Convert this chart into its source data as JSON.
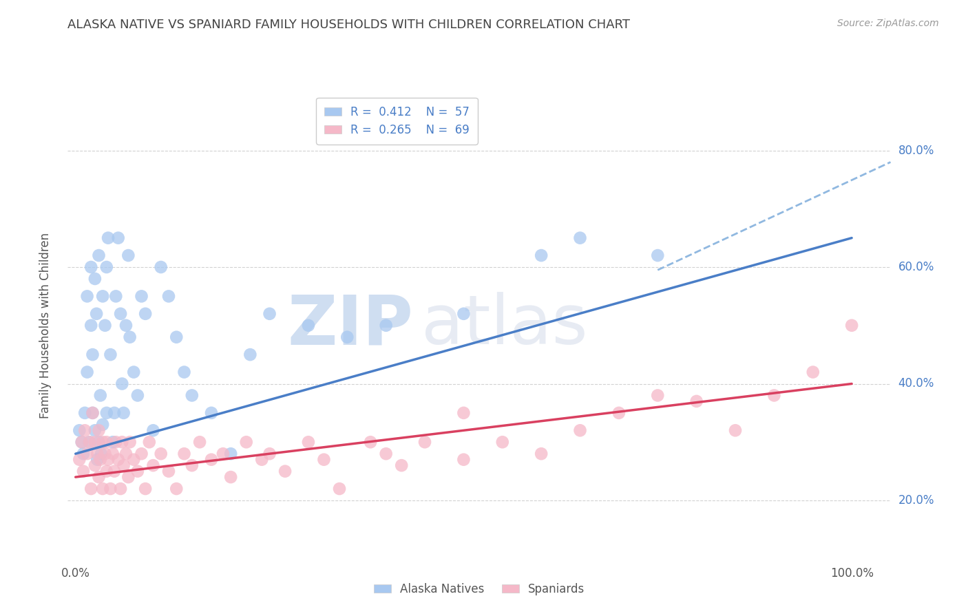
{
  "title": "ALASKA NATIVE VS SPANIARD FAMILY HOUSEHOLDS WITH CHILDREN CORRELATION CHART",
  "source": "Source: ZipAtlas.com",
  "ylabel": "Family Households with Children",
  "legend_r1": "R = 0.412",
  "legend_n1": "N = 57",
  "legend_r2": "R = 0.265",
  "legend_n2": "N = 69",
  "legend_label1": "Alaska Natives",
  "legend_label2": "Spaniards",
  "alaska_color": "#A8C8F0",
  "spaniard_color": "#F5B8C8",
  "alaska_line_color": "#4A7EC7",
  "spaniard_line_color": "#D94060",
  "dashed_line_color": "#90B8E0",
  "background_color": "#FFFFFF",
  "grid_color": "#CCCCCC",
  "title_color": "#444444",
  "watermark_color": "#E0E8F0",
  "ylim": [
    0.1,
    0.9
  ],
  "xlim": [
    -0.01,
    1.05
  ],
  "alaska_line": [
    0.0,
    0.28,
    1.0,
    0.65
  ],
  "alaska_dash": [
    0.75,
    0.595,
    1.05,
    0.78
  ],
  "spaniard_line": [
    0.0,
    0.24,
    1.0,
    0.4
  ],
  "alaska_x": [
    0.005,
    0.008,
    0.01,
    0.012,
    0.015,
    0.015,
    0.018,
    0.02,
    0.02,
    0.022,
    0.022,
    0.025,
    0.025,
    0.027,
    0.028,
    0.03,
    0.03,
    0.032,
    0.033,
    0.035,
    0.035,
    0.038,
    0.04,
    0.04,
    0.042,
    0.045,
    0.048,
    0.05,
    0.052,
    0.055,
    0.058,
    0.06,
    0.062,
    0.065,
    0.068,
    0.07,
    0.075,
    0.08,
    0.085,
    0.09,
    0.1,
    0.11,
    0.12,
    0.13,
    0.14,
    0.15,
    0.175,
    0.2,
    0.225,
    0.25,
    0.3,
    0.35,
    0.4,
    0.5,
    0.6,
    0.65,
    0.75
  ],
  "alaska_y": [
    0.32,
    0.3,
    0.28,
    0.35,
    0.42,
    0.55,
    0.3,
    0.5,
    0.6,
    0.35,
    0.45,
    0.58,
    0.32,
    0.52,
    0.27,
    0.3,
    0.62,
    0.38,
    0.28,
    0.55,
    0.33,
    0.5,
    0.6,
    0.35,
    0.65,
    0.45,
    0.3,
    0.35,
    0.55,
    0.65,
    0.52,
    0.4,
    0.35,
    0.5,
    0.62,
    0.48,
    0.42,
    0.38,
    0.55,
    0.52,
    0.32,
    0.6,
    0.55,
    0.48,
    0.42,
    0.38,
    0.35,
    0.28,
    0.45,
    0.52,
    0.5,
    0.48,
    0.5,
    0.52,
    0.62,
    0.65,
    0.62
  ],
  "spaniard_x": [
    0.005,
    0.008,
    0.01,
    0.012,
    0.015,
    0.018,
    0.02,
    0.022,
    0.025,
    0.025,
    0.028,
    0.03,
    0.03,
    0.032,
    0.035,
    0.035,
    0.038,
    0.04,
    0.04,
    0.042,
    0.045,
    0.048,
    0.05,
    0.052,
    0.055,
    0.058,
    0.06,
    0.062,
    0.065,
    0.068,
    0.07,
    0.075,
    0.08,
    0.085,
    0.09,
    0.095,
    0.1,
    0.11,
    0.12,
    0.13,
    0.14,
    0.15,
    0.16,
    0.175,
    0.19,
    0.2,
    0.22,
    0.24,
    0.25,
    0.27,
    0.3,
    0.32,
    0.34,
    0.38,
    0.4,
    0.42,
    0.45,
    0.5,
    0.55,
    0.6,
    0.65,
    0.7,
    0.75,
    0.8,
    0.85,
    0.9,
    0.95,
    1.0,
    0.5
  ],
  "spaniard_y": [
    0.27,
    0.3,
    0.25,
    0.32,
    0.28,
    0.3,
    0.22,
    0.35,
    0.26,
    0.3,
    0.28,
    0.24,
    0.32,
    0.27,
    0.3,
    0.22,
    0.28,
    0.25,
    0.3,
    0.27,
    0.22,
    0.28,
    0.25,
    0.3,
    0.27,
    0.22,
    0.3,
    0.26,
    0.28,
    0.24,
    0.3,
    0.27,
    0.25,
    0.28,
    0.22,
    0.3,
    0.26,
    0.28,
    0.25,
    0.22,
    0.28,
    0.26,
    0.3,
    0.27,
    0.28,
    0.24,
    0.3,
    0.27,
    0.28,
    0.25,
    0.3,
    0.27,
    0.22,
    0.3,
    0.28,
    0.26,
    0.3,
    0.27,
    0.3,
    0.28,
    0.32,
    0.35,
    0.38,
    0.37,
    0.32,
    0.38,
    0.42,
    0.5,
    0.35
  ]
}
